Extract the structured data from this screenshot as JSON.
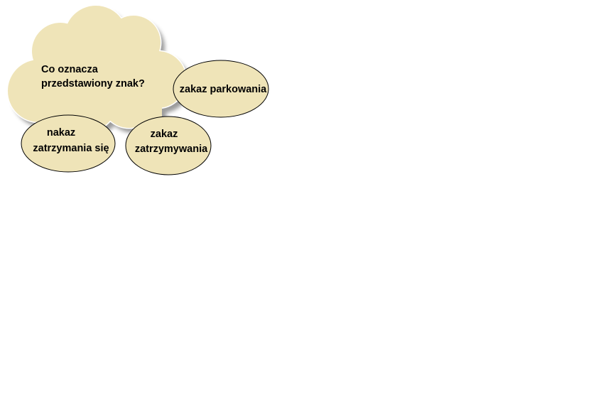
{
  "cloud": {
    "question_line1": "Co oznacza",
    "question_line2": "przedstawiony znak?"
  },
  "answers": [
    {
      "line1": "zakaz parkowania",
      "line2": ""
    },
    {
      "line1": "nakaz",
      "line2": "zatrzymania się"
    },
    {
      "line1": "zakaz",
      "line2": "zatrzymywania"
    }
  ],
  "colors": {
    "fill": "#efe4b8",
    "stroke": "#000000",
    "shadow": "#8a8a8a",
    "background": "#ffffff"
  }
}
